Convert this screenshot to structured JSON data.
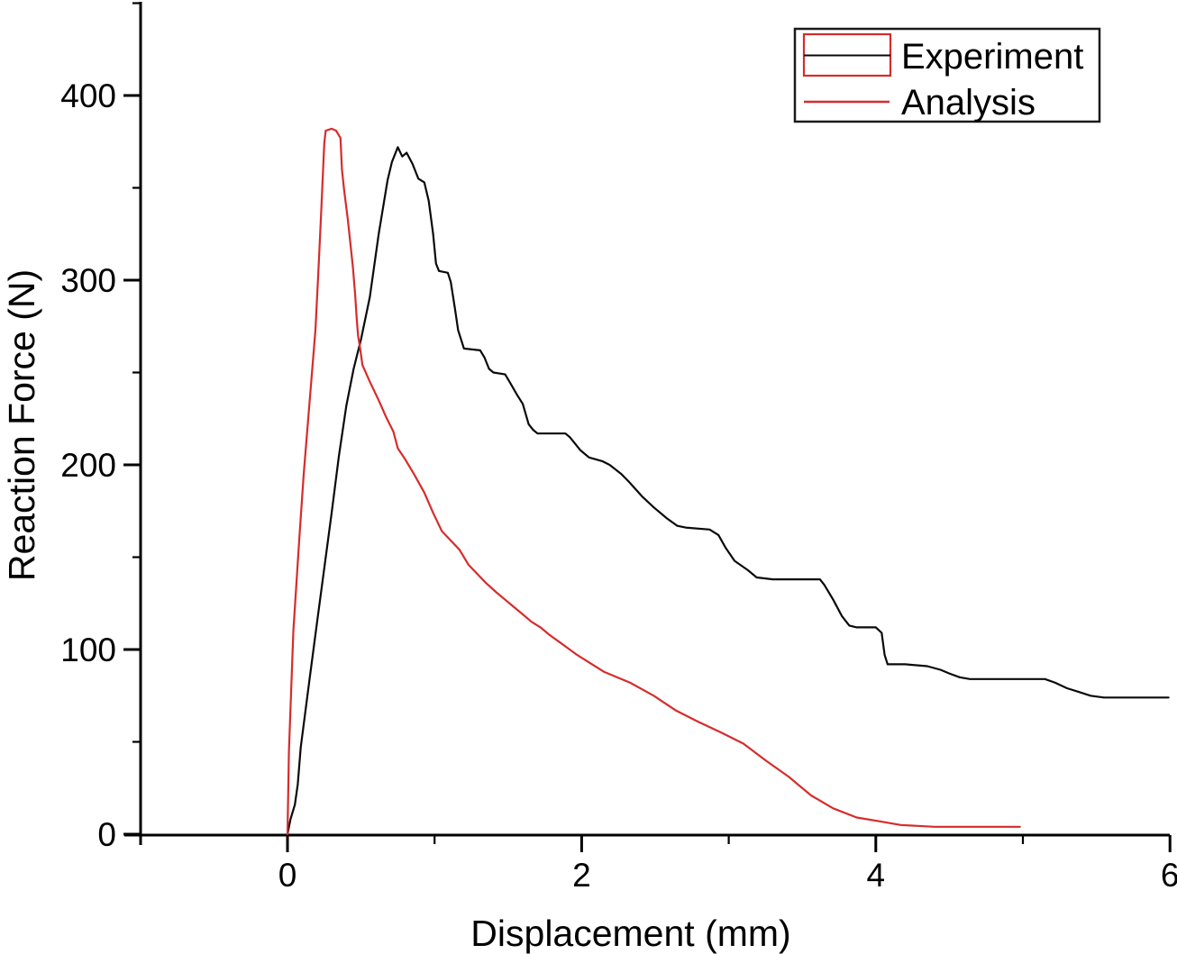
{
  "figure": {
    "background": "#ffffff"
  },
  "colors": {
    "experiment_line": "#0a0a0a",
    "analysis_line": "#d62c2c",
    "axis": "#000000",
    "legend_border": "#1a1a1a",
    "legend_symbol_box": "#d62c2c",
    "text": "#000000",
    "background": "#ffffff"
  },
  "axes": {
    "x": {
      "label": "Displacement (mm)",
      "tick_labels": [
        "0",
        "2",
        "4",
        "6"
      ],
      "tick_values": [
        0,
        2,
        4,
        6
      ],
      "minor_tick_values": [
        1,
        3,
        5
      ]
    },
    "y": {
      "label": "Reaction Force (N)",
      "tick_labels": [
        "0",
        "100",
        "200",
        "300",
        "400"
      ],
      "tick_values": [
        0,
        100,
        200,
        300,
        400
      ],
      "minor_tick_values": [
        50,
        150,
        250,
        350,
        450
      ]
    }
  },
  "legend": {
    "entries": [
      {
        "label": "Experiment",
        "color": "#0a0a0a",
        "symbol": "box-with-line"
      },
      {
        "label": "Analysis",
        "color": "#d62c2c",
        "symbol": "line"
      }
    ],
    "position": "top-right"
  },
  "chart_data": {
    "type": "line",
    "title": "",
    "xlabel": "Displacement (mm)",
    "ylabel": "Reaction Force (N)",
    "xlim": [
      -1.0,
      6.05
    ],
    "ylim": [
      0,
      450
    ],
    "grid": false,
    "legend_position": "top-right",
    "series": [
      {
        "name": "Experiment",
        "color": "#0a0a0a",
        "points": [
          [
            0,
            0
          ],
          [
            0.02,
            8
          ],
          [
            0.05,
            16
          ],
          [
            0.07,
            27
          ],
          [
            0.09,
            47
          ],
          [
            0.15,
            84
          ],
          [
            0.2,
            114
          ],
          [
            0.25,
            144
          ],
          [
            0.3,
            174
          ],
          [
            0.35,
            205
          ],
          [
            0.4,
            232
          ],
          [
            0.45,
            252
          ],
          [
            0.5,
            268
          ],
          [
            0.56,
            291
          ],
          [
            0.62,
            325
          ],
          [
            0.68,
            354
          ],
          [
            0.71,
            364
          ],
          [
            0.75,
            372
          ],
          [
            0.78,
            367
          ],
          [
            0.81,
            369
          ],
          [
            0.85,
            363
          ],
          [
            0.89,
            355
          ],
          [
            0.93,
            353
          ],
          [
            0.96,
            343
          ],
          [
            0.99,
            325
          ],
          [
            1.01,
            309
          ],
          [
            1.03,
            305
          ],
          [
            1.09,
            304
          ],
          [
            1.11,
            299
          ],
          [
            1.14,
            284
          ],
          [
            1.16,
            273
          ],
          [
            1.2,
            263
          ],
          [
            1.31,
            262
          ],
          [
            1.34,
            258
          ],
          [
            1.37,
            252
          ],
          [
            1.4,
            250
          ],
          [
            1.48,
            249
          ],
          [
            1.51,
            245
          ],
          [
            1.56,
            238
          ],
          [
            1.6,
            233
          ],
          [
            1.64,
            222
          ],
          [
            1.67,
            219
          ],
          [
            1.7,
            217
          ],
          [
            1.89,
            217
          ],
          [
            1.92,
            215
          ],
          [
            1.99,
            208
          ],
          [
            2.05,
            204
          ],
          [
            2.14,
            202
          ],
          [
            2.19,
            200
          ],
          [
            2.27,
            195
          ],
          [
            2.32,
            191
          ],
          [
            2.41,
            183
          ],
          [
            2.49,
            177
          ],
          [
            2.58,
            171
          ],
          [
            2.65,
            167
          ],
          [
            2.71,
            166
          ],
          [
            2.87,
            165
          ],
          [
            2.93,
            162
          ],
          [
            2.98,
            155
          ],
          [
            3.04,
            148
          ],
          [
            3.13,
            143
          ],
          [
            3.19,
            139
          ],
          [
            3.3,
            138
          ],
          [
            3.5,
            138
          ],
          [
            3.62,
            138
          ],
          [
            3.65,
            135
          ],
          [
            3.71,
            127
          ],
          [
            3.77,
            118
          ],
          [
            3.82,
            113
          ],
          [
            3.87,
            112
          ],
          [
            4.0,
            112
          ],
          [
            4.04,
            109
          ],
          [
            4.06,
            97
          ],
          [
            4.08,
            92
          ],
          [
            4.2,
            92
          ],
          [
            4.35,
            91
          ],
          [
            4.44,
            89
          ],
          [
            4.5,
            87
          ],
          [
            4.57,
            85
          ],
          [
            4.64,
            84
          ],
          [
            4.9,
            84
          ],
          [
            5.15,
            84
          ],
          [
            5.22,
            82
          ],
          [
            5.3,
            79
          ],
          [
            5.38,
            77
          ],
          [
            5.46,
            75
          ],
          [
            5.55,
            74
          ],
          [
            5.75,
            74
          ],
          [
            5.99,
            74
          ]
        ]
      },
      {
        "name": "Analysis",
        "color": "#d62c2c",
        "points": [
          [
            0,
            0
          ],
          [
            0.01,
            45
          ],
          [
            0.04,
            110
          ],
          [
            0.08,
            160
          ],
          [
            0.11,
            195
          ],
          [
            0.15,
            234
          ],
          [
            0.19,
            273
          ],
          [
            0.21,
            305
          ],
          [
            0.23,
            338
          ],
          [
            0.25,
            374
          ],
          [
            0.26,
            381
          ],
          [
            0.3,
            382
          ],
          [
            0.33,
            381
          ],
          [
            0.36,
            377
          ],
          [
            0.37,
            360
          ],
          [
            0.385,
            349
          ],
          [
            0.41,
            333
          ],
          [
            0.43,
            318
          ],
          [
            0.445,
            307
          ],
          [
            0.46,
            292
          ],
          [
            0.47,
            280
          ],
          [
            0.48,
            270
          ],
          [
            0.49,
            265
          ],
          [
            0.51,
            254
          ],
          [
            0.56,
            245
          ],
          [
            0.62,
            235
          ],
          [
            0.67,
            226
          ],
          [
            0.72,
            218
          ],
          [
            0.75,
            209
          ],
          [
            0.8,
            203
          ],
          [
            0.86,
            195
          ],
          [
            0.93,
            185
          ],
          [
            0.99,
            174
          ],
          [
            1.05,
            164
          ],
          [
            1.11,
            159
          ],
          [
            1.17,
            154
          ],
          [
            1.23,
            146
          ],
          [
            1.29,
            141
          ],
          [
            1.35,
            136
          ],
          [
            1.42,
            131
          ],
          [
            1.48,
            127
          ],
          [
            1.54,
            123
          ],
          [
            1.6,
            119
          ],
          [
            1.66,
            115
          ],
          [
            1.72,
            112
          ],
          [
            1.78,
            108
          ],
          [
            1.85,
            104
          ],
          [
            1.97,
            97
          ],
          [
            2.15,
            88
          ],
          [
            2.33,
            82
          ],
          [
            2.49,
            75
          ],
          [
            2.64,
            67
          ],
          [
            2.79,
            61
          ],
          [
            2.95,
            55
          ],
          [
            3.1,
            49
          ],
          [
            3.25,
            40
          ],
          [
            3.41,
            31
          ],
          [
            3.56,
            21
          ],
          [
            3.71,
            14
          ],
          [
            3.87,
            9
          ],
          [
            4.02,
            7
          ],
          [
            4.17,
            5
          ],
          [
            4.4,
            4
          ],
          [
            4.7,
            4
          ],
          [
            4.98,
            4
          ]
        ]
      }
    ]
  }
}
